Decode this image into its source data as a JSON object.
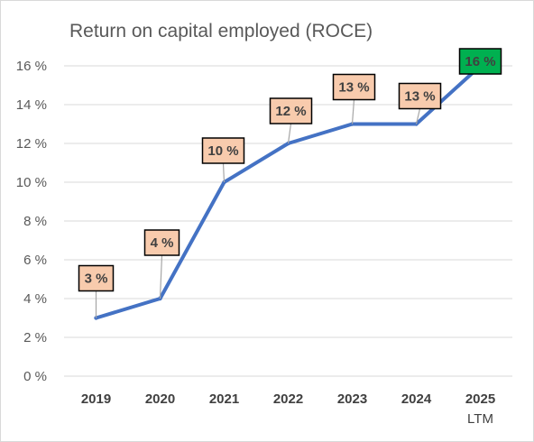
{
  "chart_data": {
    "type": "line",
    "title": "Return on capital employed (ROCE)",
    "xlabel": "",
    "ylabel": "",
    "categories": [
      "2019",
      "2020",
      "2021",
      "2022",
      "2023",
      "2024",
      "2025"
    ],
    "category_sublabels": [
      "",
      "",
      "",
      "",
      "",
      "",
      "LTM"
    ],
    "series": [
      {
        "values": [
          3,
          4,
          10,
          12,
          13,
          13,
          16
        ]
      }
    ],
    "data_labels": [
      "3 %",
      "4 %",
      "10 %",
      "12 %",
      "13 %",
      "13 %",
      "16 %"
    ],
    "ylim": [
      0,
      16
    ],
    "yticks": [
      0,
      2,
      4,
      6,
      8,
      10,
      12,
      14,
      16
    ],
    "ytick_labels": [
      "0 %",
      "2 %",
      "4 %",
      "6 %",
      "8 %",
      "10 %",
      "12 %",
      "14 %",
      "16 %"
    ],
    "grid": true,
    "legend": "none",
    "colors": {
      "line": "#4472c4",
      "label_fill": "#f8cbad",
      "highlight_label_fill": "#00b050",
      "grid": "#d9d9d9"
    },
    "highlight_index": 6
  }
}
